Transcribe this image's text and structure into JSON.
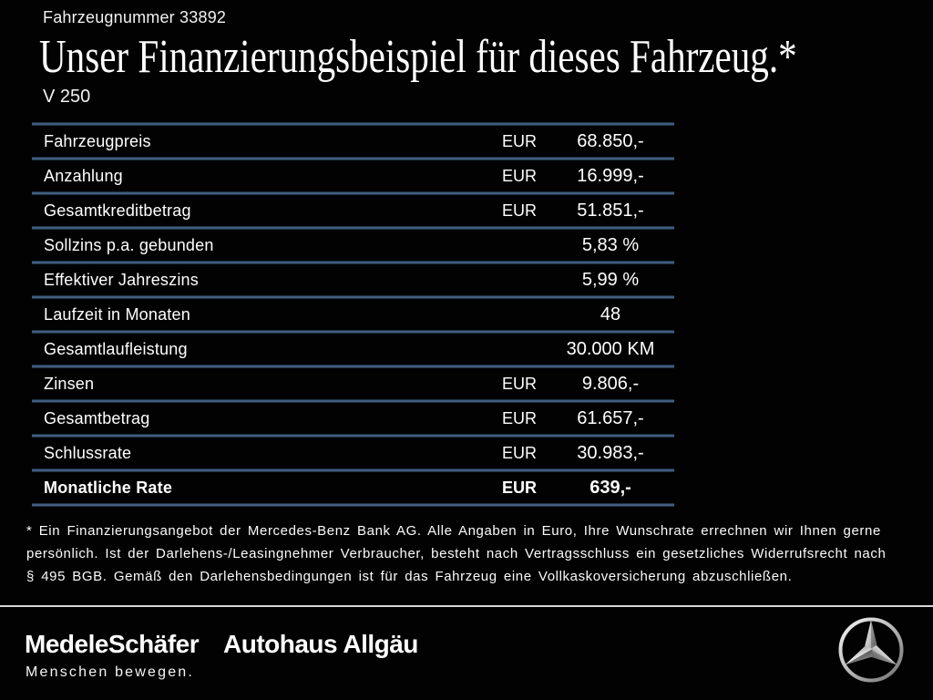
{
  "header": {
    "vehicle_number": "Fahrzeugnummer 33892",
    "title": "Unser Finanzierungsbeispiel für dieses Fahrzeug.*",
    "model": "V 250"
  },
  "table": {
    "rows": [
      {
        "label": "Fahrzeugpreis",
        "currency": "EUR",
        "value": "68.850,-",
        "bold": false
      },
      {
        "label": "Anzahlung",
        "currency": "EUR",
        "value": "16.999,-",
        "bold": false
      },
      {
        "label": "Gesamtkreditbetrag",
        "currency": "EUR",
        "value": "51.851,-",
        "bold": false
      },
      {
        "label": "Sollzins p.a. gebunden",
        "currency": "",
        "value": "5,83 %",
        "bold": false
      },
      {
        "label": "Effektiver Jahreszins",
        "currency": "",
        "value": "5,99 %",
        "bold": false
      },
      {
        "label": "Laufzeit in Monaten",
        "currency": "",
        "value": "48",
        "bold": false
      },
      {
        "label": "Gesamtlaufleistung",
        "currency": "",
        "value": "30.000 KM",
        "bold": false
      },
      {
        "label": "Zinsen",
        "currency": "EUR",
        "value": "9.806,-",
        "bold": false
      },
      {
        "label": "Gesamtbetrag",
        "currency": "EUR",
        "value": "61.657,-",
        "bold": false
      },
      {
        "label": "Schlussrate",
        "currency": "EUR",
        "value": "30.983,-",
        "bold": false
      },
      {
        "label": "Monatliche Rate",
        "currency": "EUR",
        "value": "639,-",
        "bold": true
      }
    ]
  },
  "footnote": {
    "lines": [
      "* Ein Finanzierungsangebot der Mercedes-Benz Bank AG. Alle Angaben in Euro, Ihre Wunschrate errechnen wir Ihnen gerne",
      "persönlich. Ist der Darlehens-/Leasingnehmer Verbraucher, besteht nach Vertragsschluss ein gesetzliches Widerrufsrecht nach",
      "§ 495 BGB. Gemäß den Darlehensbedingungen ist für das Fahrzeug eine Vollkaskoversicherung abzuschließen."
    ]
  },
  "footer": {
    "dealer_name": "MedeleSchäfer",
    "dealer_slogan": "Menschen bewegen.",
    "dealer_name_2": "Autohaus Allgäu",
    "brand_logo_icon": "mercedes-star-logo"
  },
  "colors": {
    "background": "#020202",
    "text": "#ffffff",
    "separator_blue": "#4a6a8e",
    "footer_divider": "#d8d8d8"
  }
}
